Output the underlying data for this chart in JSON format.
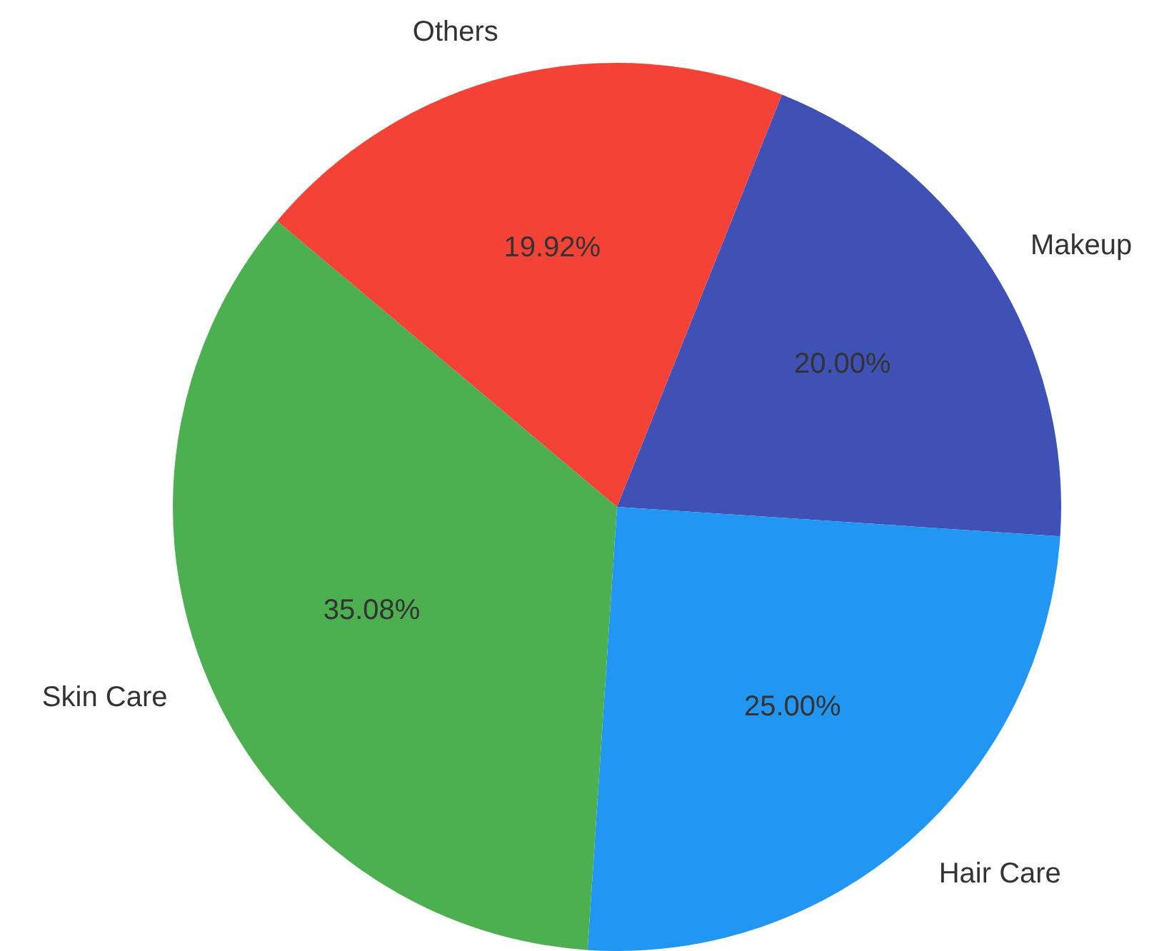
{
  "chart_data": {
    "type": "pie",
    "categories": [
      "Makeup",
      "Hair Care",
      "Skin Care",
      "Others"
    ],
    "values": [
      20.0,
      25.0,
      35.08,
      19.92
    ],
    "colors": [
      "#3f51b5",
      "#2196f3",
      "#4caf50",
      "#f44336"
    ],
    "value_labels": [
      "20.00%",
      "25.00%",
      "35.08%",
      "19.92%"
    ],
    "legend": false
  }
}
